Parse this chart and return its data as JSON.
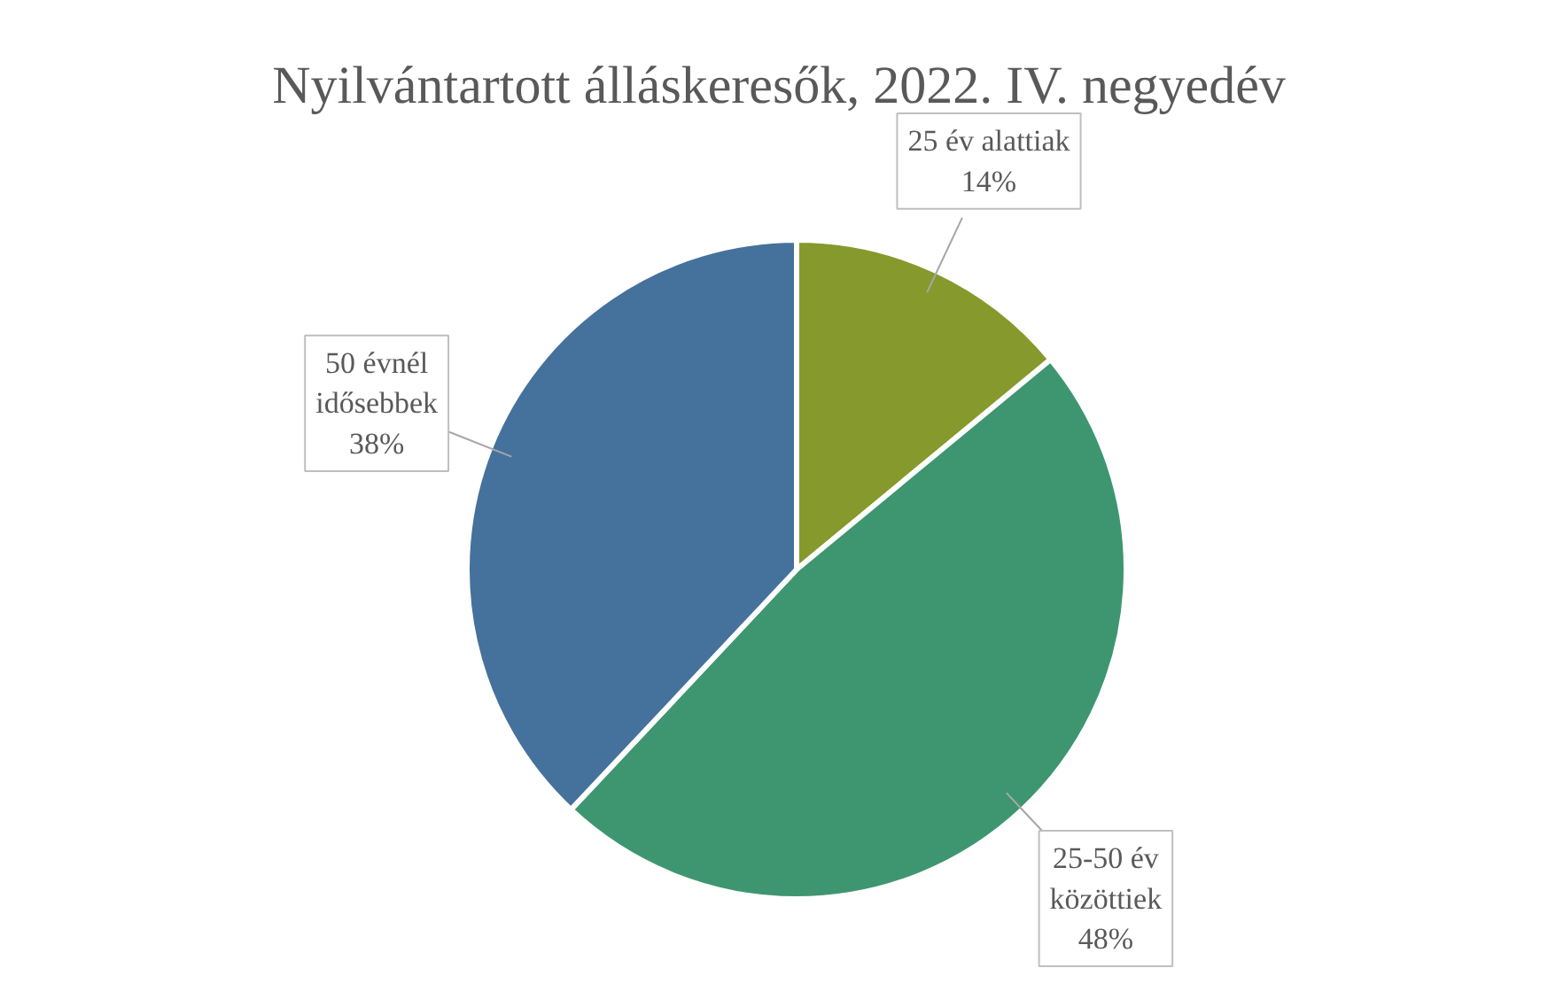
{
  "chart_data": {
    "type": "pie",
    "title": "Nyilvántartott álláskeresők, 2022. IV. negyedév",
    "categories": [
      "25 év alattiak",
      "25-50 év közöttiek",
      "50 évnél idősebbek"
    ],
    "values": [
      14,
      48,
      38
    ],
    "colors": [
      "#86992c",
      "#3e9670",
      "#45719d"
    ],
    "value_labels": [
      "14%",
      "48%",
      "38%"
    ]
  }
}
